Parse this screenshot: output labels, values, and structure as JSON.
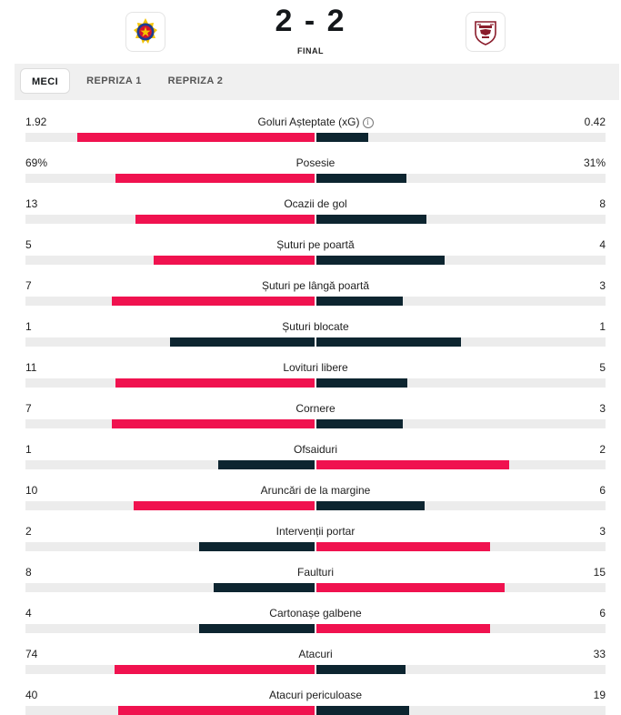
{
  "match": {
    "home_logo_icon": "fcsb-crest-icon",
    "away_logo_icon": "rapid-crest-icon",
    "score": "2 - 2",
    "status": "FINAL"
  },
  "tabs": [
    {
      "label": "MECI",
      "active": true
    },
    {
      "label": "REPRIZA 1",
      "active": false
    },
    {
      "label": "REPRIZA 2",
      "active": false
    }
  ],
  "colors": {
    "winner": "#f0124f",
    "loser": "#0d2530",
    "track": "#ececec"
  },
  "stats": [
    {
      "label": "Goluri Așteptate (xG)",
      "home": "1.92",
      "away": "0.42",
      "home_num": 1.92,
      "away_num": 0.42,
      "info": true
    },
    {
      "label": "Posesie",
      "home": "69%",
      "away": "31%",
      "home_num": 69,
      "away_num": 31
    },
    {
      "label": "Ocazii de gol",
      "home": "13",
      "away": "8",
      "home_num": 13,
      "away_num": 8
    },
    {
      "label": "Șuturi pe poartă",
      "home": "5",
      "away": "4",
      "home_num": 5,
      "away_num": 4
    },
    {
      "label": "Șuturi pe lângă poartă",
      "home": "7",
      "away": "3",
      "home_num": 7,
      "away_num": 3
    },
    {
      "label": "Șuturi blocate",
      "home": "1",
      "away": "1",
      "home_num": 1,
      "away_num": 1
    },
    {
      "label": "Lovituri libere",
      "home": "11",
      "away": "5",
      "home_num": 11,
      "away_num": 5
    },
    {
      "label": "Cornere",
      "home": "7",
      "away": "3",
      "home_num": 7,
      "away_num": 3
    },
    {
      "label": "Ofsaiduri",
      "home": "1",
      "away": "2",
      "home_num": 1,
      "away_num": 2
    },
    {
      "label": "Aruncări de la margine",
      "home": "10",
      "away": "6",
      "home_num": 10,
      "away_num": 6
    },
    {
      "label": "Intervenții portar",
      "home": "2",
      "away": "3",
      "home_num": 2,
      "away_num": 3
    },
    {
      "label": "Faulturi",
      "home": "8",
      "away": "15",
      "home_num": 8,
      "away_num": 15
    },
    {
      "label": "Cartonașe galbene",
      "home": "4",
      "away": "6",
      "home_num": 4,
      "away_num": 6
    },
    {
      "label": "Atacuri",
      "home": "74",
      "away": "33",
      "home_num": 74,
      "away_num": 33
    },
    {
      "label": "Atacuri periculoase",
      "home": "40",
      "away": "19",
      "home_num": 40,
      "away_num": 19
    }
  ]
}
